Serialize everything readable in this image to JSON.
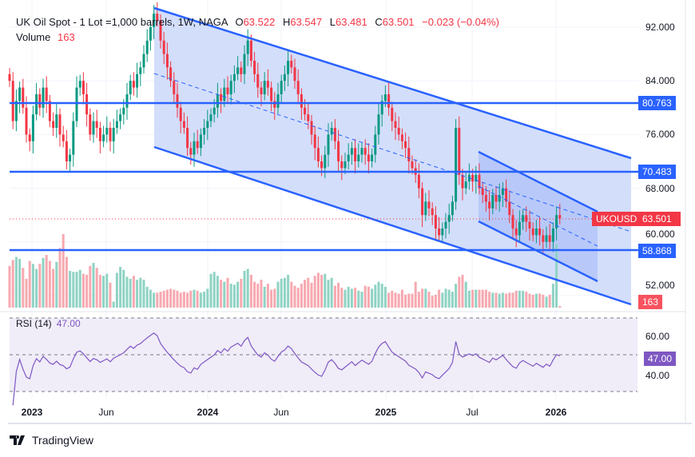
{
  "header": {
    "symbol_title": "UK Oil Spot - 1 Lot =1,000 barrels, 1W, NAGA",
    "open_label": "O",
    "open": "63.522",
    "high_label": "H",
    "high": "63.547",
    "low_label": "L",
    "low": "63.481",
    "close_label": "C",
    "close": "63.501",
    "change": "−0.023 (−0.04%)",
    "volume_label": "Volume",
    "volume": "163"
  },
  "rsi": {
    "label": "RSI (14)",
    "value": "47.00",
    "ticks": [
      "60.00",
      "40.00"
    ],
    "color": "#7e57c2"
  },
  "price_axis": {
    "ticks": [
      "92.000",
      "84.000",
      "76.000",
      "68.000",
      "60.000",
      "52.000"
    ]
  },
  "levels": [
    {
      "value": "80.763"
    },
    {
      "value": "70.483"
    },
    {
      "value": "58.868"
    }
  ],
  "current": {
    "symbol": "UKOUSD",
    "price": "63.501",
    "volume": "163"
  },
  "time_axis": [
    {
      "label": "2023",
      "bold": true
    },
    {
      "label": "Jun",
      "bold": false
    },
    {
      "label": "2024",
      "bold": true
    },
    {
      "label": "Jun",
      "bold": false
    },
    {
      "label": "2025",
      "bold": true
    },
    {
      "label": "Jul",
      "bold": false
    },
    {
      "label": "2026",
      "bold": true
    }
  ],
  "brand": "TradingView",
  "colors": {
    "up": "#089981",
    "down": "#f23645",
    "line": "#2962ff",
    "channel_fill": "#d1dcfb",
    "rsi_bg": "#f0ecf8"
  },
  "chart_data": {
    "type": "candlestick",
    "timeframe": "1W",
    "ylim": [
      50,
      95
    ],
    "closes": [
      84,
      78,
      81,
      83,
      80,
      76,
      75,
      79,
      82,
      80,
      83,
      81,
      78,
      77,
      79,
      76,
      75,
      72,
      73,
      78,
      83,
      84,
      82,
      79,
      76,
      78,
      77,
      75,
      76,
      77,
      75,
      77,
      78,
      79,
      80,
      82,
      84,
      83,
      85,
      86,
      88,
      90,
      92,
      94,
      93,
      90,
      88,
      86,
      84,
      82,
      80,
      78,
      77,
      74,
      73,
      75,
      74,
      76,
      77,
      78,
      79,
      80,
      82,
      81,
      83,
      82,
      84,
      85,
      86,
      85,
      88,
      90,
      87,
      85,
      83,
      82,
      84,
      83,
      81,
      80,
      82,
      84,
      85,
      87,
      86,
      84,
      82,
      80,
      79,
      78,
      76,
      74,
      72,
      71,
      73,
      76,
      77,
      75,
      72,
      71,
      72,
      73,
      74,
      72,
      73,
      74,
      73,
      72,
      73,
      76,
      79,
      81,
      82,
      80,
      78,
      77,
      76,
      75,
      74,
      72,
      71,
      70,
      68,
      64,
      66,
      65,
      64,
      62,
      61,
      62,
      63,
      64,
      66,
      77,
      70,
      68,
      69,
      70,
      69,
      70,
      68,
      67,
      66,
      65,
      67,
      66,
      67,
      68,
      66,
      64,
      62,
      61,
      63,
      64,
      63,
      62,
      61,
      62,
      61,
      60,
      61,
      60,
      62,
      64,
      63.501
    ],
    "volumes": [
      4200,
      4800,
      5100,
      4900,
      4000,
      2900,
      4700,
      4400,
      3900,
      4400,
      5000,
      5300,
      4700,
      3900,
      4600,
      6000,
      7400,
      5100,
      3700,
      3600,
      3600,
      3800,
      3400,
      3300,
      4200,
      4500,
      4000,
      3300,
      3200,
      3400,
      2500,
      600,
      3500,
      4100,
      3800,
      3100,
      2900,
      3200,
      2800,
      3000,
      2800,
      2100,
      1800,
      1500,
      1500,
      1600,
      1700,
      1800,
      1900,
      1800,
      1700,
      1500,
      1600,
      1500,
      1700,
      1800,
      1700,
      1500,
      1600,
      1900,
      3400,
      3600,
      3200,
      2800,
      2600,
      3000,
      2400,
      2300,
      2600,
      2900,
      3700,
      3900,
      3300,
      2600,
      2400,
      2800,
      2100,
      2400,
      1800,
      1900,
      2600,
      2900,
      3000,
      3300,
      2600,
      2200,
      2000,
      2400,
      2800,
      3000,
      2500,
      3200,
      3500,
      3300,
      3400,
      2800,
      3000,
      2200,
      2500,
      2000,
      1800,
      2100,
      1900,
      2000,
      1700,
      1600,
      2200,
      2100,
      1900,
      2300,
      2600,
      2400,
      2100,
      1500,
      1700,
      1500,
      1400,
      1800,
      1300,
      1400,
      1400,
      2600,
      1600,
      1900,
      1900,
      1600,
      1200,
      1300,
      1800,
      1500,
      1900,
      1800,
      1600,
      2400,
      3100,
      3300,
      2600,
      1700,
      1800,
      1800,
      1800,
      1800,
      1800,
      1600,
      1500,
      1500,
      1400,
      1500,
      1400,
      1500,
      1500,
      1700,
      1700,
      1700,
      1600,
      1400,
      1300,
      1400,
      1400,
      1300,
      1100,
      1300,
      2400,
      6400,
      163
    ]
  }
}
